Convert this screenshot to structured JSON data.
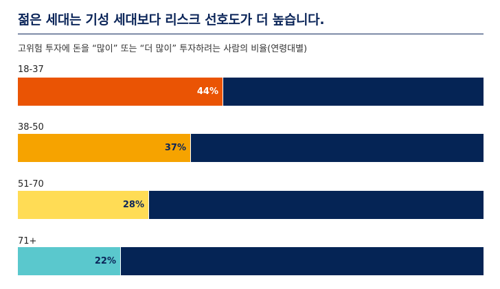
{
  "title": "젊은 세대는 기성 세대보다 리스크 선호도가 더 높습니다.",
  "subtitle": "고위험 투자에 돈을 “많이” 또는 “더 많이” 투자하려는 사람의 비율(연령대별)",
  "chart_data": {
    "type": "bar",
    "orientation": "horizontal-stacked-100",
    "categories": [
      "18-37",
      "38-50",
      "51-70",
      "71+"
    ],
    "values": [
      44,
      37,
      28,
      22
    ],
    "value_labels": [
      "44%",
      "37%",
      "28%",
      "22%"
    ],
    "ylim": [
      0,
      100
    ],
    "colors": [
      "#ea5404",
      "#f6a300",
      "#ffdc55",
      "#5ac8cd"
    ],
    "remainder_color": "#052455",
    "label_colors": [
      "#ffffff",
      "#0b2559",
      "#0b2559",
      "#0b2559"
    ]
  }
}
